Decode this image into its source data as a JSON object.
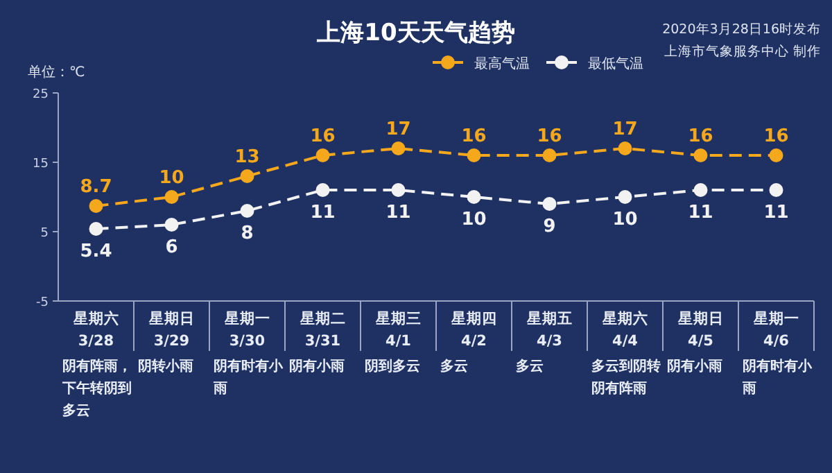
{
  "chart_data": {
    "type": "line",
    "title": "上海10天天气趋势",
    "ylabel": "单位：℃",
    "annotations": [
      "2020年3月28日16时发布",
      "上海市气象服务中心 制作"
    ],
    "categories": [
      "星期六\n3/28\n阴有阵雨，下午转阴到多云",
      "星期日\n3/29\n阴转小雨",
      "星期一\n3/30\n阴有时有小雨",
      "星期二\n3/31\n阴有小雨",
      "星期三\n4/1\n阴到多云",
      "星期四\n4/2\n多云",
      "星期五\n4/3\n多云",
      "星期六\n4/4\n多云到阴转阴有阵雨",
      "星期日\n4/5\n阴有小雨",
      "星期一\n4/6\n阴有时有小雨"
    ],
    "series": [
      {
        "name": "最高气温",
        "color": "#f5a81c",
        "values": [
          8.7,
          10,
          13,
          16,
          17,
          16,
          16,
          17,
          16,
          16
        ]
      },
      {
        "name": "最低气温",
        "color": "#f2f2f2",
        "values": [
          5.4,
          6,
          8,
          11,
          11,
          10,
          9,
          10,
          11,
          11
        ]
      }
    ],
    "ylim": [
      -5,
      25
    ],
    "yticks": [
      -5,
      5,
      15,
      25
    ],
    "grid": false,
    "legend": "top right",
    "marker": "circle",
    "line_style": "dashed",
    "data_labels": true
  }
}
